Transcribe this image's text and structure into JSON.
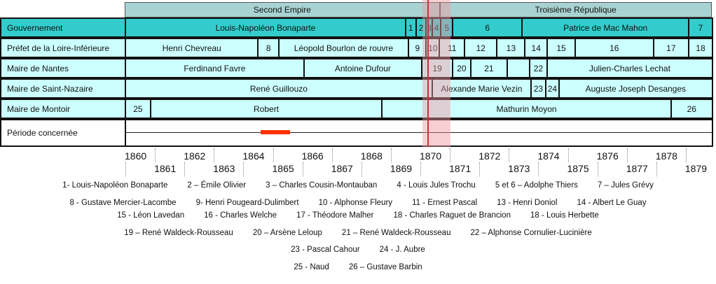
{
  "chart_data": {
    "type": "timeline",
    "x_range": [
      1860,
      1879
    ],
    "highlight": {
      "start": 1870.1,
      "end": 1871.05,
      "color": "#f4a6ae"
    },
    "highlight_line": 1870.25,
    "eras": [
      {
        "label": "Second Empire",
        "start": 1860,
        "end": 1870.68
      },
      {
        "label": "Troisième République",
        "start": 1870.68,
        "end": 1879.9
      }
    ],
    "rows": [
      {
        "label": "Gouvernement",
        "color": "#33cccc",
        "segments": [
          {
            "label": "Louis-Napoléon Bonaparte",
            "start": 1860,
            "end": 1869.5
          },
          {
            "label": "1",
            "start": 1869.5,
            "end": 1869.85
          },
          {
            "label": "2",
            "start": 1869.85,
            "end": 1870.2
          },
          {
            "label": "3",
            "start": 1870.2,
            "end": 1870.4
          },
          {
            "label": "4",
            "start": 1870.4,
            "end": 1870.7
          },
          {
            "label": "5",
            "start": 1870.7,
            "end": 1871.1
          },
          {
            "label": "6",
            "start": 1871.1,
            "end": 1873.45
          },
          {
            "label": "Patrice de Mac Mahon",
            "start": 1873.45,
            "end": 1879.1
          },
          {
            "label": "7",
            "start": 1879.1,
            "end": 1879.9
          }
        ]
      },
      {
        "label": "Préfet de la Loire-Inférieure",
        "color": "#ccffff",
        "segments": [
          {
            "label": "Henri Chevreau",
            "start": 1860,
            "end": 1864.5
          },
          {
            "label": "8",
            "start": 1864.5,
            "end": 1865.2
          },
          {
            "label": "Léopold Bourlon de rouvre",
            "start": 1865.2,
            "end": 1869.6
          },
          {
            "label": "9",
            "start": 1869.6,
            "end": 1870.2
          },
          {
            "label": "10",
            "start": 1870.2,
            "end": 1870.65
          },
          {
            "label": "11",
            "start": 1870.65,
            "end": 1871.5
          },
          {
            "label": "12",
            "start": 1871.5,
            "end": 1872.6
          },
          {
            "label": "13",
            "start": 1872.6,
            "end": 1873.55
          },
          {
            "label": "14",
            "start": 1873.55,
            "end": 1874.3
          },
          {
            "label": "15",
            "start": 1874.3,
            "end": 1875.25
          },
          {
            "label": "16",
            "start": 1875.25,
            "end": 1877.9
          },
          {
            "label": "17",
            "start": 1877.9,
            "end": 1879.1
          },
          {
            "label": "18",
            "start": 1879.1,
            "end": 1879.9
          }
        ]
      },
      {
        "label": "Maire de Nantes",
        "color": "#ccffff",
        "segments": [
          {
            "label": "Ferdinand Favre",
            "start": 1860,
            "end": 1866.05
          },
          {
            "label": "Antoine Dufour",
            "start": 1866.05,
            "end": 1870.05
          },
          {
            "label": "19",
            "start": 1870.05,
            "end": 1871.1
          },
          {
            "label": "20",
            "start": 1871.1,
            "end": 1871.7
          },
          {
            "label": "21",
            "start": 1871.7,
            "end": 1872.95
          },
          {
            "label": "",
            "start": 1872.95,
            "end": 1873.7
          },
          {
            "label": "22",
            "start": 1873.7,
            "end": 1874.3
          },
          {
            "label": "Julien-Charles Lechat",
            "start": 1874.3,
            "end": 1879.9
          }
        ]
      },
      {
        "label": "Maire de Saint-Nazaire",
        "color": "#ccffff",
        "segments": [
          {
            "label": "René Guillouzo",
            "start": 1860,
            "end": 1870.4
          },
          {
            "label": "Alexande Marie Vezin",
            "start": 1870.4,
            "end": 1873.75
          },
          {
            "label": "23",
            "start": 1873.75,
            "end": 1874.25
          },
          {
            "label": "24",
            "start": 1874.25,
            "end": 1874.7
          },
          {
            "label": "Auguste Joseph Desanges",
            "start": 1874.7,
            "end": 1879.9
          }
        ]
      },
      {
        "label": "Maire de Montoir",
        "color": "#ccffff",
        "segments": [
          {
            "label": "25",
            "start": 1860,
            "end": 1860.85
          },
          {
            "label": "Robert",
            "start": 1860.85,
            "end": 1868.7
          },
          {
            "label": "Mathurin Moyon",
            "start": 1868.7,
            "end": 1878.5
          },
          {
            "label": "26",
            "start": 1878.5,
            "end": 1879.9
          }
        ]
      }
    ],
    "period": {
      "label": "Période concernée",
      "start": 1864.6,
      "end": 1865.6
    },
    "ticks_top": [
      "1860",
      "1862",
      "1864",
      "1866",
      "1868",
      "1870",
      "1872",
      "1874",
      "1876",
      "1878"
    ],
    "ticks_bottom": [
      "1861",
      "1863",
      "1865",
      "1867",
      "1869",
      "1871",
      "1873",
      "1875",
      "1877",
      "1879"
    ],
    "legend": [
      [
        "1- Louis-Napoléon Bonaparte",
        "2 – Émile Olivier",
        "3 – Charles Cousin-Montauban",
        "4 - Louis Jules Trochu",
        "5 et 6 – Adolphe Thiers",
        "7 – Jules Grévy"
      ],
      [
        "8 - Gustave Mercier-Lacombe",
        "9- Henri Pougeard-Dulimbert",
        "10 - Alphonse Fleury",
        "11 - Ernest Pascal",
        "13 - Henri Doniol",
        "14 - Albert Le Guay"
      ],
      [
        "15 - Léon Lavedan",
        "16 - Charles Welche",
        "17 - Théodore Malher",
        "18 - Charles Raguet de Brancion",
        "18 - Louis Herbette"
      ],
      [
        "19 – René Waldeck-Rousseau",
        "20 – Arsène Leloup",
        "21 – René Waldeck-Rousseau",
        "22 – Alphonse Cornulier-Lucinière"
      ],
      [
        "23 - Pascal Cahour",
        "24 - J. Aubre"
      ],
      [
        "25 - Naud",
        "26 – Gustave Barbin"
      ]
    ]
  }
}
